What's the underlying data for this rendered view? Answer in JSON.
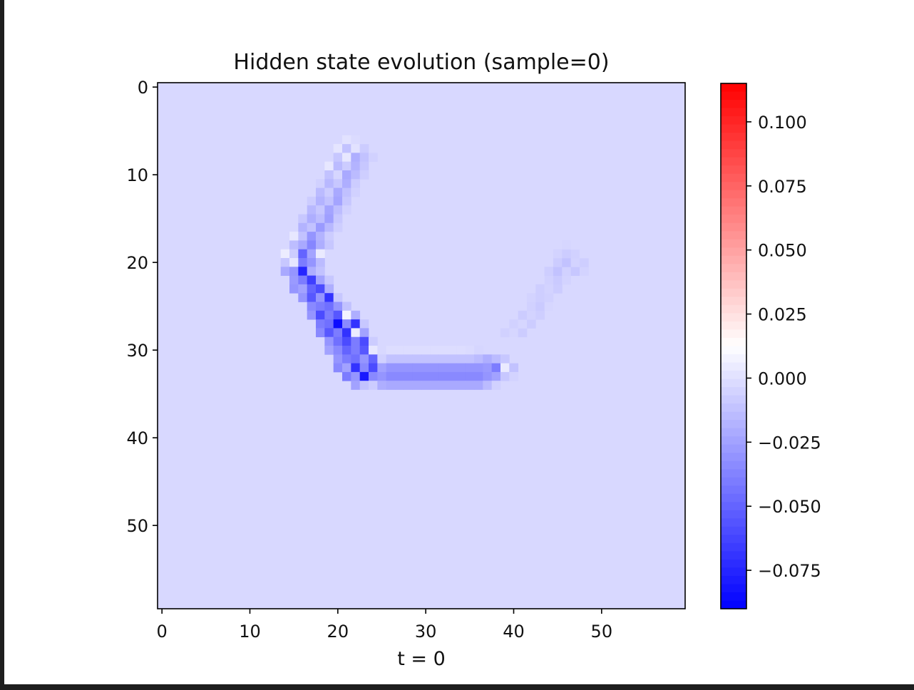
{
  "chart_data": {
    "type": "heatmap",
    "title": "Hidden state evolution (sample=0)",
    "xlabel": "t = 0",
    "ylabel": "",
    "grid_size": [
      60,
      60
    ],
    "x_ticks": [
      0,
      10,
      20,
      30,
      40,
      50
    ],
    "y_ticks": [
      0,
      10,
      20,
      30,
      40,
      50
    ],
    "xlim": [
      -0.5,
      59.5
    ],
    "ylim": [
      59.5,
      -0.5
    ],
    "background_value": -0.003,
    "colormap": "bwr",
    "colorbar": {
      "vmin": -0.09,
      "vmax": 0.115,
      "ticks": [
        0.1,
        0.075,
        0.05,
        0.025,
        0.0,
        -0.025,
        -0.05,
        -0.075
      ],
      "tick_labels": [
        "0.100",
        "0.075",
        "0.050",
        "0.025",
        "0.000",
        "−0.025",
        "−0.050",
        "−0.075"
      ]
    },
    "cells": [
      [
        21,
        6,
        0.001
      ],
      [
        22,
        6,
        -0.002
      ],
      [
        20,
        7,
        0.002
      ],
      [
        21,
        7,
        -0.012
      ],
      [
        22,
        7,
        0.001
      ],
      [
        23,
        7,
        -0.008
      ],
      [
        20,
        8,
        -0.01
      ],
      [
        21,
        8,
        0.003
      ],
      [
        22,
        8,
        -0.02
      ],
      [
        23,
        8,
        -0.012
      ],
      [
        24,
        8,
        -0.006
      ],
      [
        19,
        9,
        0.003
      ],
      [
        20,
        9,
        -0.015
      ],
      [
        21,
        9,
        -0.008
      ],
      [
        22,
        9,
        -0.018
      ],
      [
        23,
        9,
        -0.01
      ],
      [
        19,
        10,
        -0.012
      ],
      [
        20,
        10,
        -0.004
      ],
      [
        21,
        10,
        -0.022
      ],
      [
        22,
        10,
        -0.015
      ],
      [
        23,
        10,
        -0.007
      ],
      [
        18,
        11,
        -0.006
      ],
      [
        19,
        11,
        -0.016
      ],
      [
        20,
        11,
        -0.01
      ],
      [
        21,
        11,
        -0.02
      ],
      [
        22,
        11,
        -0.008
      ],
      [
        18,
        12,
        -0.015
      ],
      [
        19,
        12,
        -0.008
      ],
      [
        20,
        12,
        -0.022
      ],
      [
        21,
        12,
        -0.013
      ],
      [
        22,
        12,
        -0.006
      ],
      [
        17,
        13,
        -0.008
      ],
      [
        18,
        13,
        -0.018
      ],
      [
        19,
        13,
        -0.012
      ],
      [
        20,
        13,
        -0.024
      ],
      [
        21,
        13,
        -0.01
      ],
      [
        17,
        14,
        -0.016
      ],
      [
        18,
        14,
        -0.01
      ],
      [
        19,
        14,
        -0.024
      ],
      [
        20,
        14,
        -0.014
      ],
      [
        21,
        14,
        -0.006
      ],
      [
        16,
        15,
        -0.01
      ],
      [
        17,
        15,
        -0.02
      ],
      [
        18,
        15,
        -0.014
      ],
      [
        19,
        15,
        -0.026
      ],
      [
        20,
        15,
        -0.01
      ],
      [
        16,
        16,
        -0.018
      ],
      [
        17,
        16,
        -0.012
      ],
      [
        18,
        16,
        -0.028
      ],
      [
        19,
        16,
        -0.016
      ],
      [
        20,
        16,
        -0.007
      ],
      [
        15,
        17,
        0.003
      ],
      [
        16,
        17,
        -0.012
      ],
      [
        17,
        17,
        -0.03
      ],
      [
        18,
        17,
        -0.018
      ],
      [
        19,
        17,
        -0.008
      ],
      [
        15,
        18,
        -0.014
      ],
      [
        16,
        18,
        -0.022
      ],
      [
        17,
        18,
        -0.036
      ],
      [
        18,
        18,
        -0.02
      ],
      [
        19,
        18,
        -0.01
      ],
      [
        14,
        19,
        0.005
      ],
      [
        15,
        19,
        -0.008
      ],
      [
        16,
        19,
        -0.05
      ],
      [
        17,
        19,
        -0.024
      ],
      [
        18,
        19,
        0.004
      ],
      [
        14,
        20,
        -0.01
      ],
      [
        15,
        20,
        0.002
      ],
      [
        16,
        20,
        -0.04
      ],
      [
        17,
        20,
        -0.03
      ],
      [
        18,
        20,
        -0.015
      ],
      [
        14,
        21,
        -0.022
      ],
      [
        15,
        21,
        -0.03
      ],
      [
        16,
        21,
        -0.075
      ],
      [
        17,
        21,
        -0.02
      ],
      [
        18,
        21,
        -0.012
      ],
      [
        15,
        22,
        -0.028
      ],
      [
        16,
        22,
        -0.04
      ],
      [
        17,
        22,
        -0.065
      ],
      [
        18,
        22,
        -0.025
      ],
      [
        19,
        22,
        -0.01
      ],
      [
        15,
        23,
        -0.03
      ],
      [
        16,
        23,
        -0.025
      ],
      [
        17,
        23,
        -0.05
      ],
      [
        18,
        23,
        -0.06
      ],
      [
        19,
        23,
        -0.02
      ],
      [
        16,
        24,
        -0.03
      ],
      [
        17,
        24,
        -0.055
      ],
      [
        18,
        24,
        -0.03
      ],
      [
        19,
        24,
        -0.07
      ],
      [
        20,
        24,
        -0.01
      ],
      [
        17,
        25,
        -0.035
      ],
      [
        18,
        25,
        -0.04
      ],
      [
        19,
        25,
        -0.045
      ],
      [
        20,
        25,
        -0.03
      ],
      [
        21,
        25,
        -0.012
      ],
      [
        17,
        26,
        -0.03
      ],
      [
        18,
        26,
        -0.06
      ],
      [
        19,
        26,
        -0.04
      ],
      [
        20,
        26,
        -0.055
      ],
      [
        21,
        26,
        0.008
      ],
      [
        22,
        26,
        -0.02
      ],
      [
        18,
        27,
        -0.04
      ],
      [
        19,
        27,
        -0.045
      ],
      [
        20,
        27,
        -0.085
      ],
      [
        21,
        27,
        -0.035
      ],
      [
        22,
        27,
        -0.07
      ],
      [
        23,
        27,
        -0.01
      ],
      [
        18,
        28,
        -0.035
      ],
      [
        19,
        28,
        -0.055
      ],
      [
        20,
        28,
        -0.04
      ],
      [
        21,
        28,
        -0.07
      ],
      [
        22,
        28,
        0.005
      ],
      [
        23,
        28,
        -0.025
      ],
      [
        19,
        29,
        -0.03
      ],
      [
        20,
        29,
        -0.045
      ],
      [
        21,
        29,
        -0.06
      ],
      [
        22,
        29,
        -0.04
      ],
      [
        23,
        29,
        -0.06
      ],
      [
        24,
        29,
        -0.008
      ],
      [
        19,
        30,
        -0.025
      ],
      [
        20,
        30,
        -0.035
      ],
      [
        21,
        30,
        -0.05
      ],
      [
        22,
        30,
        -0.04
      ],
      [
        23,
        30,
        -0.055
      ],
      [
        24,
        30,
        0.003
      ],
      [
        25,
        30,
        -0.003
      ],
      [
        26,
        30,
        -0.001
      ],
      [
        27,
        30,
        -0.001
      ],
      [
        28,
        30,
        -0.001
      ],
      [
        29,
        30,
        -0.001
      ],
      [
        30,
        30,
        -0.001
      ],
      [
        31,
        30,
        -0.001
      ],
      [
        32,
        30,
        -0.001
      ],
      [
        33,
        30,
        -0.001
      ],
      [
        34,
        30,
        -0.001
      ],
      [
        35,
        30,
        -0.002
      ],
      [
        36,
        30,
        -0.004
      ],
      [
        20,
        31,
        -0.03
      ],
      [
        21,
        31,
        -0.04
      ],
      [
        22,
        31,
        -0.045
      ],
      [
        23,
        31,
        -0.03
      ],
      [
        24,
        31,
        -0.05
      ],
      [
        25,
        31,
        -0.006
      ],
      [
        26,
        31,
        -0.012
      ],
      [
        27,
        31,
        -0.012
      ],
      [
        28,
        31,
        -0.012
      ],
      [
        29,
        31,
        -0.012
      ],
      [
        30,
        31,
        -0.012
      ],
      [
        31,
        31,
        -0.012
      ],
      [
        32,
        31,
        -0.012
      ],
      [
        33,
        31,
        -0.012
      ],
      [
        34,
        31,
        -0.012
      ],
      [
        35,
        31,
        -0.012
      ],
      [
        36,
        31,
        -0.015
      ],
      [
        37,
        31,
        -0.02
      ],
      [
        38,
        31,
        -0.015
      ],
      [
        39,
        31,
        -0.01
      ],
      [
        20,
        32,
        -0.035
      ],
      [
        21,
        32,
        -0.025
      ],
      [
        22,
        32,
        -0.07
      ],
      [
        23,
        32,
        -0.035
      ],
      [
        24,
        32,
        -0.06
      ],
      [
        25,
        32,
        -0.025
      ],
      [
        26,
        32,
        -0.03
      ],
      [
        27,
        32,
        -0.03
      ],
      [
        28,
        32,
        -0.03
      ],
      [
        29,
        32,
        -0.03
      ],
      [
        30,
        32,
        -0.03
      ],
      [
        31,
        32,
        -0.03
      ],
      [
        32,
        32,
        -0.03
      ],
      [
        33,
        32,
        -0.03
      ],
      [
        34,
        32,
        -0.03
      ],
      [
        35,
        32,
        -0.03
      ],
      [
        36,
        32,
        -0.03
      ],
      [
        37,
        32,
        -0.028
      ],
      [
        38,
        32,
        -0.04
      ],
      [
        39,
        32,
        0.004
      ],
      [
        40,
        32,
        -0.012
      ],
      [
        21,
        33,
        -0.04
      ],
      [
        22,
        33,
        -0.03
      ],
      [
        23,
        33,
        -0.08
      ],
      [
        24,
        33,
        -0.035
      ],
      [
        25,
        33,
        -0.03
      ],
      [
        26,
        33,
        -0.035
      ],
      [
        27,
        33,
        -0.035
      ],
      [
        28,
        33,
        -0.035
      ],
      [
        29,
        33,
        -0.035
      ],
      [
        30,
        33,
        -0.035
      ],
      [
        31,
        33,
        -0.035
      ],
      [
        32,
        33,
        -0.035
      ],
      [
        33,
        33,
        -0.035
      ],
      [
        34,
        33,
        -0.035
      ],
      [
        35,
        33,
        -0.035
      ],
      [
        36,
        33,
        -0.035
      ],
      [
        37,
        33,
        -0.03
      ],
      [
        38,
        33,
        -0.025
      ],
      [
        39,
        33,
        -0.01
      ],
      [
        40,
        33,
        -0.005
      ],
      [
        22,
        34,
        -0.025
      ],
      [
        23,
        34,
        -0.012
      ],
      [
        24,
        34,
        -0.008
      ],
      [
        25,
        34,
        -0.02
      ],
      [
        26,
        34,
        -0.022
      ],
      [
        27,
        34,
        -0.022
      ],
      [
        28,
        34,
        -0.022
      ],
      [
        29,
        34,
        -0.022
      ],
      [
        30,
        34,
        -0.022
      ],
      [
        31,
        34,
        -0.022
      ],
      [
        32,
        34,
        -0.022
      ],
      [
        33,
        34,
        -0.022
      ],
      [
        34,
        34,
        -0.022
      ],
      [
        35,
        34,
        -0.022
      ],
      [
        36,
        34,
        -0.022
      ],
      [
        37,
        34,
        -0.015
      ],
      [
        38,
        34,
        -0.006
      ],
      [
        39,
        28,
        -0.006
      ],
      [
        40,
        28,
        -0.004
      ],
      [
        41,
        28,
        -0.008
      ],
      [
        40,
        27,
        -0.006
      ],
      [
        41,
        27,
        -0.004
      ],
      [
        42,
        27,
        -0.008
      ],
      [
        41,
        26,
        -0.008
      ],
      [
        42,
        26,
        -0.005
      ],
      [
        43,
        26,
        -0.007
      ],
      [
        42,
        25,
        -0.006
      ],
      [
        43,
        25,
        -0.009
      ],
      [
        44,
        25,
        -0.004
      ],
      [
        42,
        24,
        -0.005
      ],
      [
        43,
        24,
        -0.007
      ],
      [
        44,
        24,
        -0.006
      ],
      [
        43,
        23,
        -0.007
      ],
      [
        44,
        23,
        -0.005
      ],
      [
        45,
        23,
        -0.008
      ],
      [
        44,
        22,
        -0.006
      ],
      [
        45,
        22,
        -0.009
      ],
      [
        46,
        22,
        -0.005
      ],
      [
        44,
        21,
        -0.007
      ],
      [
        45,
        21,
        -0.012
      ],
      [
        46,
        21,
        -0.006
      ],
      [
        47,
        21,
        -0.01
      ],
      [
        48,
        21,
        -0.005
      ],
      [
        45,
        20,
        -0.008
      ],
      [
        46,
        20,
        -0.012
      ],
      [
        47,
        20,
        -0.005
      ],
      [
        48,
        20,
        -0.007
      ],
      [
        45,
        19,
        -0.005
      ],
      [
        46,
        19,
        -0.008
      ],
      [
        47,
        19,
        -0.006
      ],
      [
        48,
        19,
        -0.003
      ],
      [
        46,
        18,
        -0.004
      ],
      [
        47,
        18,
        -0.003
      ]
    ]
  }
}
